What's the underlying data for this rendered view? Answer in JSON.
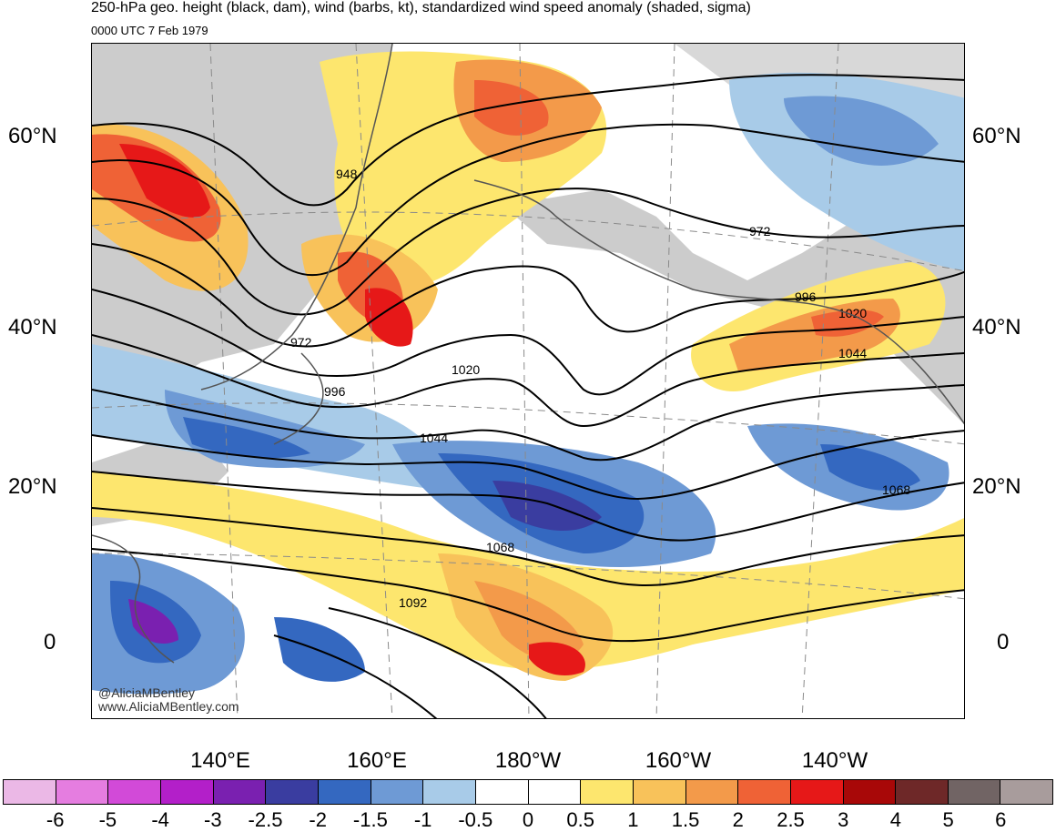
{
  "header": {
    "title": "250-hPa geo. height (black, dam), wind (barbs, kt), standardized wind speed anomaly (shaded, sigma)",
    "subtitle": "0000 UTC 7 Feb 1979"
  },
  "map": {
    "lat_labels_left": [
      "60°N",
      "40°N",
      "20°N",
      "0"
    ],
    "lat_labels_right": [
      "60°N",
      "40°N",
      "20°N",
      "0"
    ],
    "lon_labels": [
      "140°E",
      "160°E",
      "180°W",
      "160°W",
      "140°W"
    ],
    "contour_labels": [
      "948",
      "972",
      "996",
      "1020",
      "1044",
      "1068",
      "1092",
      "972",
      "996",
      "1020",
      "1044",
      "1068"
    ],
    "credits": [
      "@AliciaMBentley",
      "www.AliciaMBentley.com"
    ]
  },
  "colorbar": {
    "colors": [
      "#ebb8e6",
      "#e57de0",
      "#d24ad8",
      "#b31fc9",
      "#7a20b0",
      "#3a3da0",
      "#3468c0",
      "#6e9ad5",
      "#a8cbe8",
      "#ffffff",
      "#ffffff",
      "#fde66e",
      "#f8c25a",
      "#f39a4a",
      "#ef6236",
      "#e61818",
      "#a80808",
      "#6e2828",
      "#716464",
      "#a89c9c"
    ],
    "ticks": [
      "-6",
      "-5",
      "-4",
      "-3",
      "-2.5",
      "-2",
      "-1.5",
      "-1",
      "-0.5",
      "0",
      "0.5",
      "1",
      "1.5",
      "2",
      "2.5",
      "3",
      "4",
      "5",
      "6"
    ]
  }
}
